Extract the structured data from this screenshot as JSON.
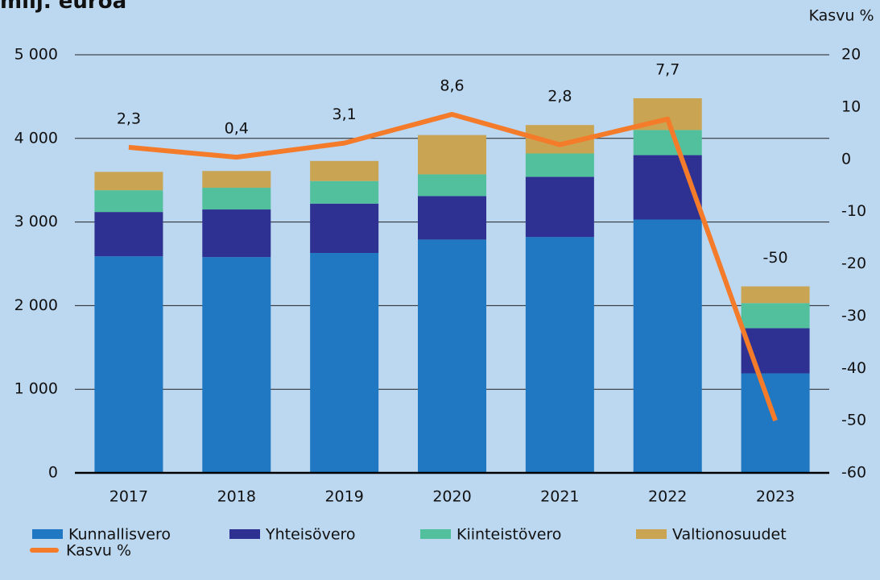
{
  "chart_data": {
    "type": "bar",
    "stacked": true,
    "title": "milj. euroa",
    "y2_label": "Kasvu %",
    "categories": [
      "2017",
      "2018",
      "2019",
      "2020",
      "2021",
      "2022",
      "2023"
    ],
    "series": [
      {
        "name": "Kunnallisvero",
        "color": "#1f78c1",
        "values": [
          2590,
          2580,
          2630,
          2790,
          2820,
          3030,
          1190
        ]
      },
      {
        "name": "Yhteisövero",
        "color": "#2e3192",
        "values": [
          530,
          570,
          590,
          520,
          720,
          770,
          540
        ]
      },
      {
        "name": "Kiinteistövero",
        "color": "#52c09d",
        "values": [
          260,
          260,
          270,
          260,
          280,
          300,
          300
        ]
      },
      {
        "name": "Valtionosuudet",
        "color": "#c9a452",
        "values": [
          220,
          200,
          240,
          470,
          340,
          380,
          200
        ]
      },
      {
        "name": "Kasvu %",
        "type": "line",
        "axis": "y2",
        "color": "#f47b2a",
        "values": [
          2.3,
          0.4,
          3.1,
          8.6,
          2.8,
          7.7,
          -50
        ],
        "value_labels": [
          "2,3",
          "0,4",
          "3,1",
          "8,6",
          "2,8",
          "7,7",
          "-50"
        ]
      }
    ],
    "ylim": [
      0,
      5000
    ],
    "yticks": [
      0,
      {
        "value": 1000,
        "label": "1 000"
      },
      {
        "value": 2000,
        "label": "2 000"
      },
      {
        "value": 3000,
        "label": "3 000"
      },
      {
        "value": 4000,
        "label": "4 000"
      },
      {
        "value": 5000,
        "label": "5 000"
      }
    ],
    "y2lim": [
      -60,
      20
    ],
    "y2ticks": [
      -60,
      -50,
      -40,
      -30,
      -20,
      -10,
      0,
      10,
      20
    ],
    "grid": true
  }
}
